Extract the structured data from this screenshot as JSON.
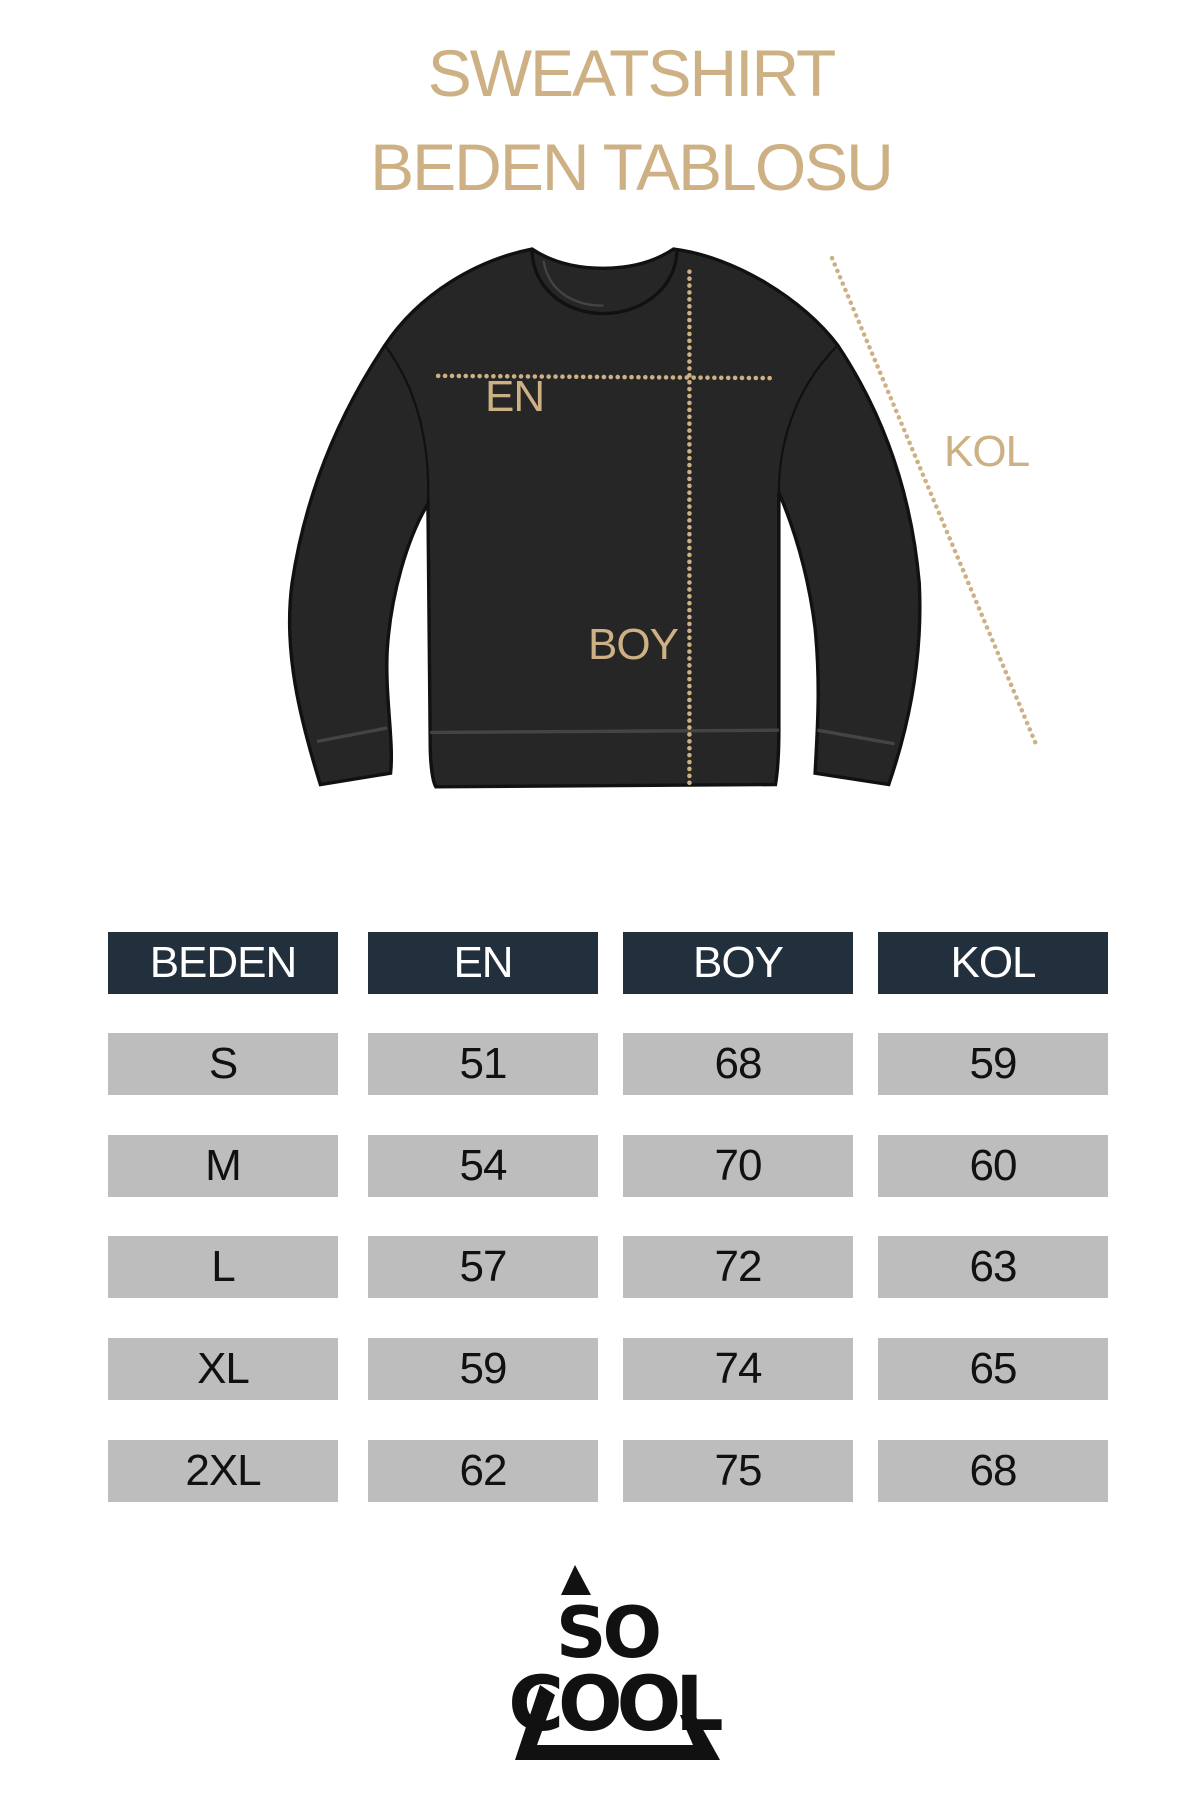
{
  "title": {
    "line1": "SWEATSHIRT",
    "line2": "BEDEN TABLOSU"
  },
  "diagram": {
    "labels": {
      "en": "EN",
      "boy": "BOY",
      "kol": "KOL"
    }
  },
  "table": {
    "headers": [
      "BEDEN",
      "EN",
      "BOY",
      "KOL"
    ],
    "rows": [
      [
        "S",
        "51",
        "68",
        "59"
      ],
      [
        "M",
        "54",
        "70",
        "60"
      ],
      [
        "L",
        "57",
        "72",
        "63"
      ],
      [
        "XL",
        "59",
        "74",
        "65"
      ],
      [
        "2XL",
        "62",
        "75",
        "68"
      ]
    ]
  },
  "logo": {
    "text": "SO COOL"
  },
  "colors": {
    "accent": "#cdb083",
    "header_bg": "#222f3c",
    "cell_bg": "#bdbdbd",
    "garment": "#262626"
  }
}
